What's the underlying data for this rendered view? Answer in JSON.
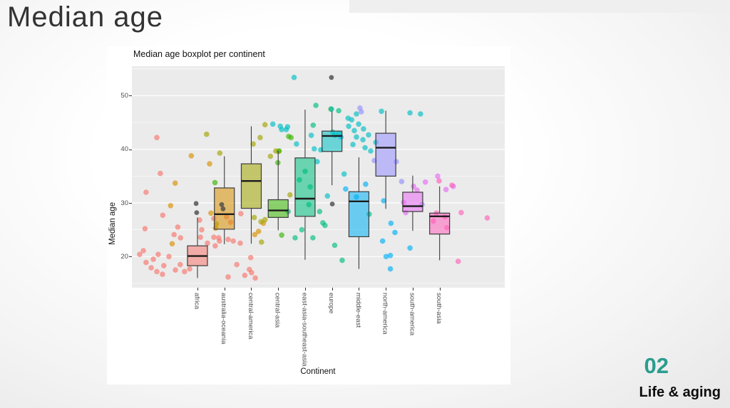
{
  "slide": {
    "title": "Median age",
    "page_number": "02",
    "section": "Life & aging"
  },
  "chart_data": {
    "type": "boxplot",
    "title": "Median age boxplot per continent",
    "xlabel": "Continent",
    "ylabel": "Median age",
    "ylim": [
      14.2,
      55.5
    ],
    "yticks": [
      20,
      30,
      40,
      50
    ],
    "yticks_minor": [
      15,
      25,
      35,
      45,
      55
    ],
    "grid": "white major and minor lines on gray panel",
    "legend": "none",
    "panel_bg": "#EBEBEB",
    "box_alpha": 0.55,
    "point_alpha": 0.65,
    "gray_color": "#4a4a4a",
    "categories": [
      "africa",
      "australia-oceania",
      "central-america",
      "central-asia",
      "east-asia-southeast-asia",
      "europe",
      "middle-east",
      "north-america",
      "south-america",
      "south-asia"
    ],
    "colors": [
      "#F8766D",
      "#D89000",
      "#A3A500",
      "#39B600",
      "#00BF7D",
      "#00BFC4",
      "#00B0F6",
      "#9590FF",
      "#E76BF3",
      "#FF62BC"
    ],
    "boxes": [
      {
        "low": 16.0,
        "q1": 18.3,
        "median": 20.1,
        "q3": 22.0,
        "high": 27.3
      },
      {
        "low": 22.3,
        "q1": 25.1,
        "median": 27.9,
        "q3": 32.8,
        "high": 38.7
      },
      {
        "low": 22.4,
        "q1": 29.0,
        "median": 34.1,
        "q3": 37.3,
        "high": 44.3
      },
      {
        "low": 24.9,
        "q1": 27.3,
        "median": 28.6,
        "q3": 30.6,
        "high": 39.7
      },
      {
        "low": 19.4,
        "q1": 27.5,
        "median": 30.8,
        "q3": 38.4,
        "high": 47.4
      },
      {
        "low": 33.3,
        "q1": 39.6,
        "median": 42.5,
        "q3": 43.4,
        "high": 47.1
      },
      {
        "low": 17.7,
        "q1": 23.7,
        "median": 30.3,
        "q3": 32.1,
        "high": 38.5
      },
      {
        "low": 28.9,
        "q1": 35.0,
        "median": 40.3,
        "q3": 43.0,
        "high": 47.2
      },
      {
        "low": 24.8,
        "q1": 28.4,
        "median": 29.4,
        "q3": 32.0,
        "high": 35.1
      },
      {
        "low": 19.3,
        "q1": 24.2,
        "median": 27.5,
        "q3": 28.1,
        "high": 33.1
      }
    ],
    "points": [
      [
        -0.51,
        42.2,
        0
      ],
      [
        -0.38,
        35.5,
        0
      ],
      [
        -0.91,
        32.0,
        0
      ],
      [
        -0.29,
        27.7,
        0
      ],
      [
        -0.95,
        25.2,
        0
      ],
      [
        0.27,
        25.5,
        0
      ],
      [
        0.13,
        24.1,
        0
      ],
      [
        0.37,
        23.5,
        0
      ],
      [
        -1.15,
        20.4,
        0
      ],
      [
        -1.01,
        21.1,
        0
      ],
      [
        -0.64,
        19.5,
        0
      ],
      [
        -0.46,
        20.4,
        0
      ],
      [
        -0.91,
        18.9,
        0
      ],
      [
        -0.72,
        17.9,
        0
      ],
      [
        -0.51,
        17.2,
        0
      ],
      [
        -0.25,
        18.3,
        0
      ],
      [
        -0.06,
        20.0,
        0
      ],
      [
        -0.3,
        16.7,
        0
      ],
      [
        0.18,
        17.5,
        0
      ],
      [
        0.36,
        18.5,
        0
      ],
      [
        0.52,
        17.2,
        0
      ],
      [
        0.71,
        17.7,
        0
      ],
      [
        1.08,
        26.8,
        0
      ],
      [
        1.16,
        25.0,
        0
      ],
      [
        1.37,
        22.5,
        0
      ],
      [
        1.66,
        22.0,
        0
      ],
      [
        1.11,
        23.6,
        0
      ],
      [
        1.82,
        22.9,
        0
      ],
      [
        2.14,
        23.2,
        0
      ],
      [
        2.33,
        22.9,
        0
      ],
      [
        2.59,
        22.5,
        0
      ],
      [
        1.61,
        27.1,
        0
      ],
      [
        2.08,
        27.4,
        0
      ],
      [
        2.23,
        26.4,
        0
      ],
      [
        2.61,
        28.0,
        0
      ],
      [
        1.61,
        23.6,
        0
      ],
      [
        1.79,
        23.5,
        0
      ],
      [
        2.93,
        17.6,
        0
      ],
      [
        3.15,
        16.0,
        0
      ],
      [
        2.76,
        16.5,
        0
      ],
      [
        2.14,
        16.2,
        0
      ],
      [
        2.98,
        19.8,
        0
      ],
      [
        3.01,
        17.0,
        0
      ],
      [
        2.46,
        18.5,
        0
      ],
      [
        0.17,
        33.7,
        1
      ],
      [
        0.0,
        29.5,
        1
      ],
      [
        0.77,
        38.8,
        1
      ],
      [
        1.5,
        28.1,
        1
      ],
      [
        1.67,
        25.3,
        1
      ],
      [
        3.13,
        24.1,
        1
      ],
      [
        3.27,
        24.7,
        1
      ],
      [
        3.45,
        26.2,
        1
      ],
      [
        0.06,
        22.4,
        1
      ],
      [
        1.45,
        37.3,
        1
      ],
      [
        3.11,
        27.3,
        2
      ],
      [
        3.36,
        26.5,
        2
      ],
      [
        3.51,
        26.9,
        2
      ],
      [
        3.38,
        22.7,
        2
      ],
      [
        3.51,
        44.6,
        2
      ],
      [
        3.33,
        42.2,
        2
      ],
      [
        3.07,
        41.0,
        2
      ],
      [
        3.91,
        39.7,
        2
      ],
      [
        4.01,
        39.6,
        2
      ],
      [
        3.71,
        38.7,
        2
      ],
      [
        4.44,
        31.5,
        2
      ],
      [
        1.7,
        26.1,
        2
      ],
      [
        1.34,
        42.8,
        2
      ],
      [
        1.83,
        39.3,
        2
      ],
      [
        4.04,
        39.7,
        3
      ],
      [
        3.99,
        37.5,
        3
      ],
      [
        4.48,
        42.2,
        3
      ],
      [
        4.39,
        42.4,
        3
      ],
      [
        4.13,
        24.0,
        3
      ],
      [
        5.96,
        47.5,
        3
      ],
      [
        1.65,
        33.8,
        3
      ],
      [
        4.63,
        23.5,
        4
      ],
      [
        5.29,
        23.5,
        4
      ],
      [
        4.88,
        25.0,
        4
      ],
      [
        5.74,
        25.8,
        4
      ],
      [
        6.38,
        19.3,
        4
      ],
      [
        5.14,
        29.7,
        4
      ],
      [
        4.37,
        28.4,
        4
      ],
      [
        5.54,
        28.4,
        4
      ],
      [
        5.66,
        26.3,
        4
      ],
      [
        6.1,
        22.1,
        4
      ],
      [
        5.3,
        44.5,
        4
      ],
      [
        6.25,
        47.2,
        4
      ],
      [
        5.4,
        48.2,
        4
      ],
      [
        5.0,
        35.9,
        4
      ],
      [
        4.79,
        34.3,
        4
      ],
      [
        5.19,
        33.0,
        4
      ],
      [
        7.38,
        27.9,
        4
      ],
      [
        4.59,
        53.4,
        5
      ],
      [
        3.8,
        44.7,
        5
      ],
      [
        4.13,
        43.7,
        5
      ],
      [
        4.3,
        43.7,
        5
      ],
      [
        4.68,
        41.0,
        5
      ],
      [
        5.23,
        42.6,
        5
      ],
      [
        5.34,
        40.1,
        5
      ],
      [
        5.58,
        39.9,
        5
      ],
      [
        5.98,
        47.5,
        5
      ],
      [
        6.03,
        43.2,
        5
      ],
      [
        6.11,
        42.6,
        5
      ],
      [
        6.25,
        43.0,
        5
      ],
      [
        6.73,
        45.5,
        5
      ],
      [
        6.91,
        46.6,
        5
      ],
      [
        6.6,
        45.8,
        5
      ],
      [
        6.62,
        44.3,
        5
      ],
      [
        6.83,
        43.5,
        5
      ],
      [
        6.99,
        44.7,
        5
      ],
      [
        7.17,
        43.8,
        5
      ],
      [
        6.91,
        42.3,
        5
      ],
      [
        7.15,
        41.8,
        5
      ],
      [
        7.36,
        42.7,
        5
      ],
      [
        6.78,
        40.9,
        5
      ],
      [
        7.23,
        40.3,
        5
      ],
      [
        7.44,
        39.7,
        5
      ],
      [
        7.63,
        41.3,
        5
      ],
      [
        7.84,
        47.1,
        5
      ],
      [
        8.9,
        46.8,
        5
      ],
      [
        9.29,
        46.6,
        5
      ],
      [
        5.45,
        37.7,
        5
      ],
      [
        6.45,
        35.4,
        5
      ],
      [
        5.83,
        31.3,
        5
      ],
      [
        4.08,
        44.3,
        5
      ],
      [
        4.35,
        44.2,
        5
      ],
      [
        6.33,
        42.3,
        6
      ],
      [
        6.51,
        32.6,
        6
      ],
      [
        7.25,
        33.5,
        6
      ],
      [
        7.92,
        30.4,
        6
      ],
      [
        8.19,
        26.2,
        6
      ],
      [
        8.34,
        24.5,
        6
      ],
      [
        7.88,
        22.9,
        6
      ],
      [
        8.9,
        21.6,
        6
      ],
      [
        8.01,
        20.0,
        6
      ],
      [
        8.17,
        20.2,
        6
      ],
      [
        8.17,
        17.7,
        6
      ],
      [
        6.91,
        31.1,
        6
      ],
      [
        7.09,
        47.0,
        7
      ],
      [
        7.04,
        47.7,
        7
      ],
      [
        7.57,
        37.9,
        7
      ],
      [
        8.59,
        34.0,
        7
      ],
      [
        8.39,
        37.7,
        7
      ],
      [
        9.35,
        29.7,
        7
      ],
      [
        9.93,
        35.0,
        8
      ],
      [
        10.51,
        33.1,
        8
      ],
      [
        9.03,
        33.1,
        8
      ],
      [
        8.74,
        28.2,
        8
      ],
      [
        9.16,
        32.4,
        8
      ],
      [
        9.47,
        33.9,
        8
      ],
      [
        10.24,
        32.5,
        8
      ],
      [
        8.66,
        30.1,
        8
      ],
      [
        10.8,
        28.2,
        9
      ],
      [
        11.77,
        27.2,
        9
      ],
      [
        10.69,
        19.1,
        9
      ],
      [
        9.98,
        34.1,
        9
      ],
      [
        10.46,
        33.3,
        9
      ],
      [
        9.88,
        28.1,
        9
      ],
      [
        10.2,
        27.4,
        9
      ],
      [
        9.77,
        26.6,
        9
      ],
      [
        10.27,
        25.4,
        9
      ]
    ],
    "gray_points": [
      [
        0.95,
        29.9
      ],
      [
        0.97,
        28.2
      ],
      [
        1.9,
        29.7
      ],
      [
        1.95,
        28.9
      ],
      [
        5.98,
        53.4
      ],
      [
        6.01,
        29.8
      ]
    ]
  }
}
